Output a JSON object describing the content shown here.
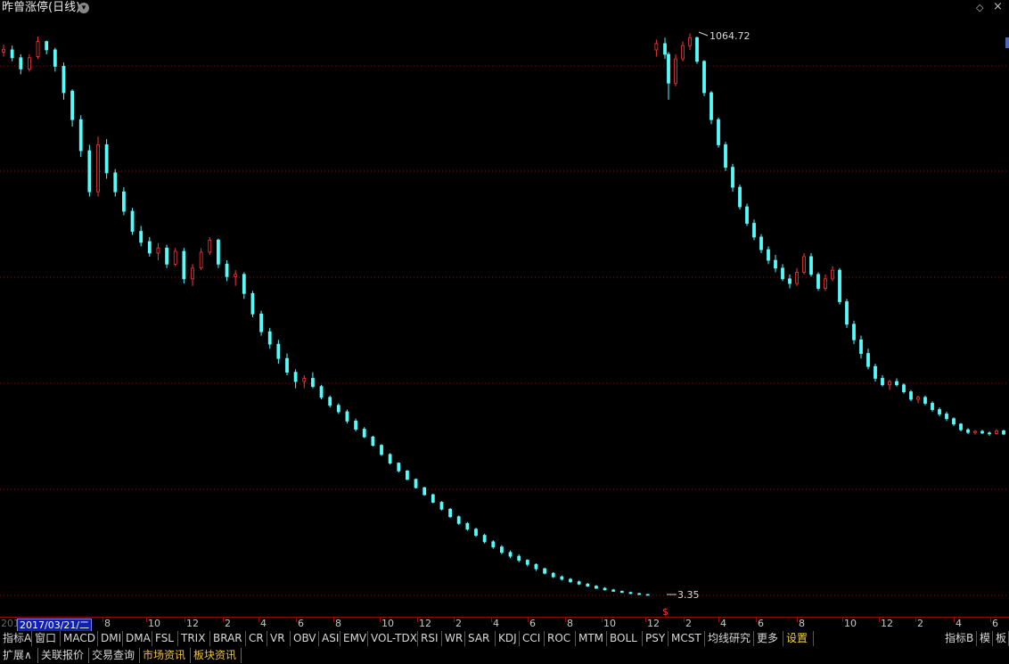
{
  "title": "昨曾涨停(日线)",
  "icons": {
    "dropdown": "chevron-down-icon",
    "diamond": "diamond-icon",
    "close": "close-icon"
  },
  "colors": {
    "up": "#ff3232",
    "down": "#54fcfc",
    "grid": "#7a1010",
    "background": "#000000",
    "highlight": "#1020b0"
  },
  "chart_data": {
    "type": "candlestick",
    "title": "昨曾涨停(日线)",
    "y_scale": "log",
    "ylim": [
      3.0,
      1250
    ],
    "grid": true,
    "annotations": [
      {
        "label": "1064.72",
        "value": 1064.72,
        "kind": "max"
      },
      {
        "label": "3.35",
        "value": 3.35,
        "kind": "min"
      },
      {
        "label": "$",
        "kind": "marker"
      }
    ],
    "x_tick_labels": [
      "201",
      "8",
      "10",
      "12",
      "2",
      "4",
      "6",
      "8",
      "10",
      "12",
      "2",
      "4",
      "6",
      "8",
      "10",
      "12",
      "2",
      "4",
      "6",
      "8",
      "10",
      "12",
      "2",
      "4",
      "6"
    ],
    "cursor_date": "2017/03/21/二",
    "ohlc": [
      {
        "o": 880,
        "h": 950,
        "l": 840,
        "c": 905
      },
      {
        "o": 900,
        "h": 940,
        "l": 800,
        "c": 830
      },
      {
        "o": 830,
        "h": 860,
        "l": 700,
        "c": 740
      },
      {
        "o": 740,
        "h": 860,
        "l": 720,
        "c": 830
      },
      {
        "o": 840,
        "h": 1030,
        "l": 820,
        "c": 980
      },
      {
        "o": 980,
        "h": 990,
        "l": 860,
        "c": 900
      },
      {
        "o": 900,
        "h": 920,
        "l": 720,
        "c": 760
      },
      {
        "o": 760,
        "h": 790,
        "l": 540,
        "c": 580
      },
      {
        "o": 590,
        "h": 600,
        "l": 410,
        "c": 440
      },
      {
        "o": 440,
        "h": 460,
        "l": 300,
        "c": 320
      },
      {
        "o": 320,
        "h": 340,
        "l": 200,
        "c": 210
      },
      {
        "o": 210,
        "h": 370,
        "l": 200,
        "c": 340
      },
      {
        "o": 340,
        "h": 360,
        "l": 240,
        "c": 255
      },
      {
        "o": 255,
        "h": 265,
        "l": 200,
        "c": 210
      },
      {
        "o": 210,
        "h": 220,
        "l": 165,
        "c": 172
      },
      {
        "o": 172,
        "h": 178,
        "l": 135,
        "c": 140
      },
      {
        "o": 140,
        "h": 148,
        "l": 120,
        "c": 125
      },
      {
        "o": 126,
        "h": 132,
        "l": 108,
        "c": 112
      },
      {
        "o": 112,
        "h": 124,
        "l": 104,
        "c": 118
      },
      {
        "o": 118,
        "h": 122,
        "l": 96,
        "c": 100
      },
      {
        "o": 100,
        "h": 118,
        "l": 98,
        "c": 114
      },
      {
        "o": 114,
        "h": 118,
        "l": 82,
        "c": 86
      },
      {
        "o": 86,
        "h": 100,
        "l": 80,
        "c": 96
      },
      {
        "o": 96,
        "h": 118,
        "l": 94,
        "c": 113
      },
      {
        "o": 113,
        "h": 132,
        "l": 110,
        "c": 128
      },
      {
        "o": 128,
        "h": 130,
        "l": 96,
        "c": 100
      },
      {
        "o": 100,
        "h": 104,
        "l": 84,
        "c": 88
      },
      {
        "o": 88,
        "h": 94,
        "l": 80,
        "c": 90
      },
      {
        "o": 90,
        "h": 92,
        "l": 70,
        "c": 74
      },
      {
        "o": 74,
        "h": 76,
        "l": 58,
        "c": 60
      },
      {
        "o": 60,
        "h": 62,
        "l": 48,
        "c": 50
      },
      {
        "o": 50,
        "h": 52,
        "l": 42,
        "c": 44
      },
      {
        "o": 44,
        "h": 46,
        "l": 36,
        "c": 38
      },
      {
        "o": 38,
        "h": 40,
        "l": 32,
        "c": 33
      },
      {
        "o": 33,
        "h": 34,
        "l": 28,
        "c": 30
      },
      {
        "o": 30,
        "h": 32,
        "l": 28,
        "c": 31
      },
      {
        "o": 31,
        "h": 33,
        "l": 28,
        "c": 28.5
      },
      {
        "o": 28.5,
        "h": 29,
        "l": 25,
        "c": 25.5
      },
      {
        "o": 25.5,
        "h": 26,
        "l": 23,
        "c": 23.5
      },
      {
        "o": 23.5,
        "h": 24,
        "l": 21.5,
        "c": 22
      },
      {
        "o": 22,
        "h": 22.5,
        "l": 19.5,
        "c": 20
      },
      {
        "o": 20,
        "h": 20.5,
        "l": 18,
        "c": 18.4
      },
      {
        "o": 18.4,
        "h": 18.8,
        "l": 16.8,
        "c": 17
      },
      {
        "o": 17,
        "h": 17.2,
        "l": 15.4,
        "c": 15.6
      },
      {
        "o": 15.6,
        "h": 15.8,
        "l": 14,
        "c": 14.2
      },
      {
        "o": 14.2,
        "h": 14.4,
        "l": 12.8,
        "c": 13
      },
      {
        "o": 13,
        "h": 13.1,
        "l": 11.8,
        "c": 12
      },
      {
        "o": 12,
        "h": 12.1,
        "l": 10.9,
        "c": 11
      },
      {
        "o": 11,
        "h": 11.1,
        "l": 10,
        "c": 10.1
      },
      {
        "o": 10.1,
        "h": 10.2,
        "l": 9.3,
        "c": 9.4
      },
      {
        "o": 9.4,
        "h": 9.5,
        "l": 8.6,
        "c": 8.7
      },
      {
        "o": 8.7,
        "h": 8.8,
        "l": 8,
        "c": 8.1
      },
      {
        "o": 8.1,
        "h": 8.2,
        "l": 7.4,
        "c": 7.5
      },
      {
        "o": 7.5,
        "h": 7.6,
        "l": 6.9,
        "c": 7
      },
      {
        "o": 7,
        "h": 7.1,
        "l": 6.5,
        "c": 6.6
      },
      {
        "o": 6.6,
        "h": 6.7,
        "l": 6.1,
        "c": 6.2
      },
      {
        "o": 6.2,
        "h": 6.3,
        "l": 5.7,
        "c": 5.8
      },
      {
        "o": 5.8,
        "h": 5.9,
        "l": 5.4,
        "c": 5.5
      },
      {
        "o": 5.5,
        "h": 5.6,
        "l": 5.1,
        "c": 5.2
      },
      {
        "o": 5.2,
        "h": 5.3,
        "l": 4.9,
        "c": 5
      },
      {
        "o": 5,
        "h": 5.1,
        "l": 4.7,
        "c": 4.8
      },
      {
        "o": 4.8,
        "h": 4.85,
        "l": 4.5,
        "c": 4.6
      },
      {
        "o": 4.6,
        "h": 4.65,
        "l": 4.3,
        "c": 4.4
      },
      {
        "o": 4.4,
        "h": 4.45,
        "l": 4.15,
        "c": 4.2
      },
      {
        "o": 4.2,
        "h": 4.25,
        "l": 4,
        "c": 4.05
      },
      {
        "o": 4.05,
        "h": 4.1,
        "l": 3.9,
        "c": 3.95
      },
      {
        "o": 3.95,
        "h": 4,
        "l": 3.8,
        "c": 3.85
      },
      {
        "o": 3.85,
        "h": 3.9,
        "l": 3.72,
        "c": 3.76
      },
      {
        "o": 3.76,
        "h": 3.8,
        "l": 3.65,
        "c": 3.68
      },
      {
        "o": 3.68,
        "h": 3.72,
        "l": 3.58,
        "c": 3.6
      },
      {
        "o": 3.6,
        "h": 3.64,
        "l": 3.52,
        "c": 3.54
      },
      {
        "o": 3.54,
        "h": 3.58,
        "l": 3.47,
        "c": 3.49
      },
      {
        "o": 3.49,
        "h": 3.52,
        "l": 3.43,
        "c": 3.45
      },
      {
        "o": 3.45,
        "h": 3.48,
        "l": 3.39,
        "c": 3.41
      },
      {
        "o": 3.41,
        "h": 3.44,
        "l": 3.36,
        "c": 3.38
      },
      {
        "o": 3.38,
        "h": 3.4,
        "l": 3.35,
        "c": 3.37
      },
      {
        "o": 900,
        "h": 1000,
        "l": 840,
        "c": 960
      },
      {
        "o": 960,
        "h": 1020,
        "l": 820,
        "c": 860
      },
      {
        "o": 860,
        "h": 880,
        "l": 540,
        "c": 640
      },
      {
        "o": 640,
        "h": 860,
        "l": 620,
        "c": 820
      },
      {
        "o": 820,
        "h": 980,
        "l": 800,
        "c": 940
      },
      {
        "o": 940,
        "h": 1064.72,
        "l": 900,
        "c": 1020
      },
      {
        "o": 1020,
        "h": 1030,
        "l": 780,
        "c": 800
      },
      {
        "o": 800,
        "h": 810,
        "l": 560,
        "c": 580
      },
      {
        "o": 580,
        "h": 590,
        "l": 420,
        "c": 440
      },
      {
        "o": 440,
        "h": 450,
        "l": 330,
        "c": 340
      },
      {
        "o": 340,
        "h": 350,
        "l": 260,
        "c": 270
      },
      {
        "o": 270,
        "h": 280,
        "l": 210,
        "c": 220
      },
      {
        "o": 220,
        "h": 226,
        "l": 175,
        "c": 180
      },
      {
        "o": 180,
        "h": 186,
        "l": 148,
        "c": 152
      },
      {
        "o": 152,
        "h": 158,
        "l": 128,
        "c": 132
      },
      {
        "o": 132,
        "h": 136,
        "l": 112,
        "c": 116
      },
      {
        "o": 116,
        "h": 120,
        "l": 100,
        "c": 104
      },
      {
        "o": 104,
        "h": 110,
        "l": 92,
        "c": 96
      },
      {
        "o": 96,
        "h": 100,
        "l": 84,
        "c": 86
      },
      {
        "o": 86,
        "h": 90,
        "l": 78,
        "c": 82
      },
      {
        "o": 82,
        "h": 96,
        "l": 80,
        "c": 92
      },
      {
        "o": 92,
        "h": 112,
        "l": 90,
        "c": 108
      },
      {
        "o": 108,
        "h": 112,
        "l": 88,
        "c": 90
      },
      {
        "o": 90,
        "h": 92,
        "l": 76,
        "c": 78
      },
      {
        "o": 78,
        "h": 90,
        "l": 76,
        "c": 86
      },
      {
        "o": 86,
        "h": 98,
        "l": 84,
        "c": 94
      },
      {
        "o": 94,
        "h": 96,
        "l": 66,
        "c": 68
      },
      {
        "o": 68,
        "h": 70,
        "l": 52,
        "c": 54
      },
      {
        "o": 54,
        "h": 56,
        "l": 44,
        "c": 46
      },
      {
        "o": 46,
        "h": 48,
        "l": 38,
        "c": 40
      },
      {
        "o": 40,
        "h": 42,
        "l": 34,
        "c": 35
      },
      {
        "o": 35,
        "h": 36,
        "l": 30,
        "c": 31
      },
      {
        "o": 31,
        "h": 32,
        "l": 28.5,
        "c": 29
      },
      {
        "o": 29,
        "h": 30.5,
        "l": 27.5,
        "c": 30
      },
      {
        "o": 30,
        "h": 31,
        "l": 28.5,
        "c": 29
      },
      {
        "o": 29,
        "h": 29.5,
        "l": 26.5,
        "c": 27
      },
      {
        "o": 27,
        "h": 27.5,
        "l": 24.5,
        "c": 25
      },
      {
        "o": 25,
        "h": 26,
        "l": 24,
        "c": 25.5
      },
      {
        "o": 25.5,
        "h": 26,
        "l": 23.5,
        "c": 24
      },
      {
        "o": 24,
        "h": 24.5,
        "l": 22,
        "c": 22.5
      },
      {
        "o": 22.5,
        "h": 23,
        "l": 21,
        "c": 21.5
      },
      {
        "o": 21.5,
        "h": 22,
        "l": 20,
        "c": 20.5
      },
      {
        "o": 20.5,
        "h": 20.8,
        "l": 19,
        "c": 19.4
      },
      {
        "o": 19.4,
        "h": 19.6,
        "l": 18,
        "c": 18.3
      },
      {
        "o": 18.3,
        "h": 18.6,
        "l": 17.5,
        "c": 17.8
      },
      {
        "o": 17.8,
        "h": 18.2,
        "l": 17.4,
        "c": 18
      },
      {
        "o": 18,
        "h": 18.3,
        "l": 17.5,
        "c": 17.7
      },
      {
        "o": 17.7,
        "h": 18,
        "l": 17.2,
        "c": 17.6
      },
      {
        "o": 17.6,
        "h": 18.4,
        "l": 17.4,
        "c": 18.1
      },
      {
        "o": 18.1,
        "h": 18.3,
        "l": 17.3,
        "c": 17.5
      }
    ]
  },
  "axis": {
    "start_label": "201",
    "cursor_date": "2017/03/21/二",
    "ticks": [
      "8",
      "10",
      "12",
      "2",
      "4",
      "6",
      "8",
      "10",
      "12",
      "2",
      "4",
      "6",
      "8",
      "10",
      "12",
      "2",
      "4",
      "6",
      "8",
      "10",
      "12",
      "2",
      "4",
      "6"
    ]
  },
  "labels": {
    "max": "1064.72",
    "min": "3.35",
    "marker": "$"
  },
  "tabs": [
    "指标A",
    "窗口",
    "MACD",
    "DMI",
    "DMA",
    "FSL",
    "TRIX",
    "BRAR",
    "CR",
    "VR",
    "OBV",
    "ASI",
    "EMV",
    "VOL-TDX",
    "RSI",
    "WR",
    "SAR",
    "KDJ",
    "CCI",
    "ROC",
    "MTM",
    "BOLL",
    "PSY",
    "MCST",
    "均线研究",
    "更多",
    "设置"
  ],
  "active_tab": "设置",
  "right_tabs": [
    "指标B",
    "模",
    "板"
  ],
  "bottom_tabs": [
    "扩展∧",
    "关联报价",
    "交易查询",
    "市场资讯",
    "板块资讯"
  ]
}
